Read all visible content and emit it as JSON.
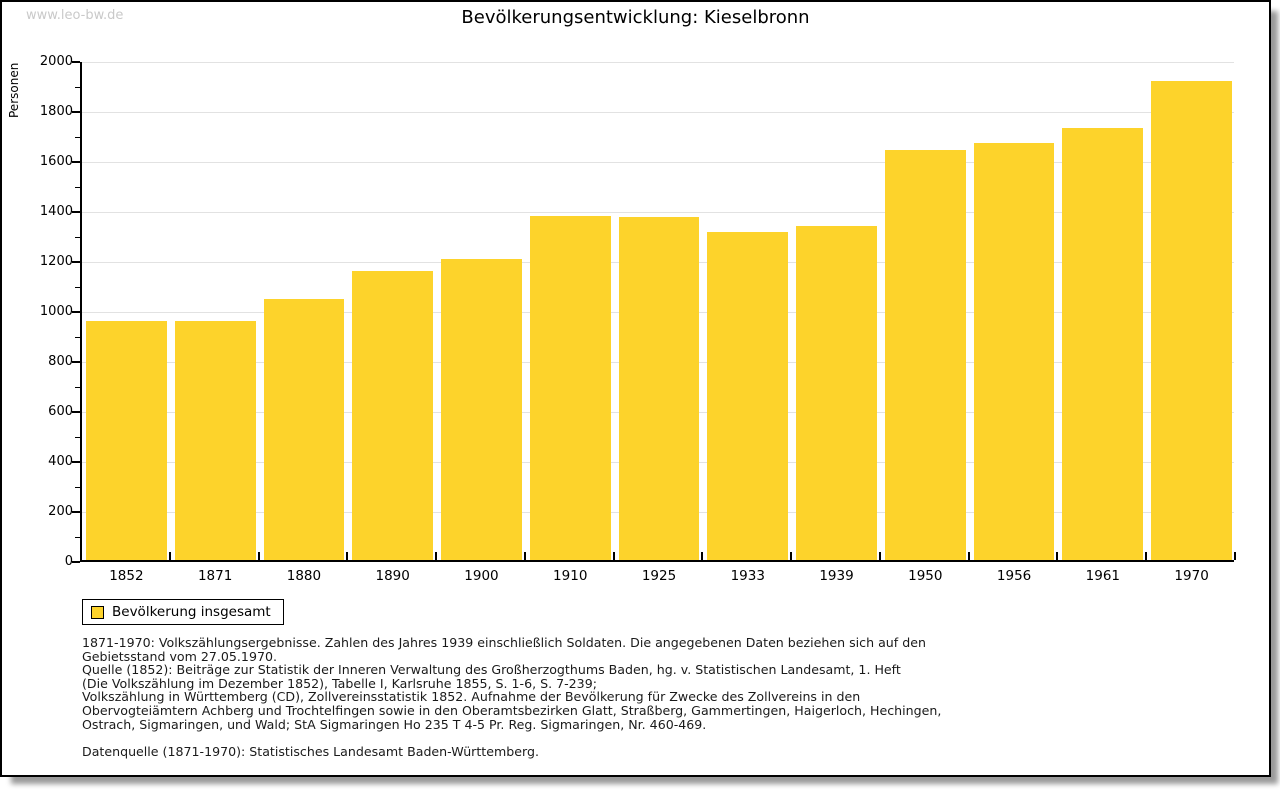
{
  "page": {
    "watermark": "www.leo-bw.de"
  },
  "chart_data": {
    "type": "bar",
    "title": "Bevölkerungsentwicklung: Kieselbronn",
    "xlabel": "",
    "ylabel": "Personen",
    "categories": [
      "1852",
      "1871",
      "1880",
      "1890",
      "1900",
      "1910",
      "1925",
      "1933",
      "1939",
      "1950",
      "1956",
      "1961",
      "1970"
    ],
    "values": [
      956,
      957,
      1043,
      1155,
      1206,
      1377,
      1371,
      1312,
      1335,
      1641,
      1668,
      1730,
      1918
    ],
    "ylim": [
      0,
      2000
    ],
    "ytick_step": 200,
    "yminor_step": 100,
    "grid": true,
    "legend_position": "bottom-left",
    "bar_color": "#fdd32b",
    "legend": {
      "label": "Bevölkerung insgesamt"
    }
  },
  "colors": {
    "bar": "#fdd32b",
    "gridline": "#e2e2e2",
    "axis": "#000000",
    "watermark": "#c9c9c9",
    "shadow": "#9a9a9a"
  },
  "footer": {
    "lines": [
      "1871-1970: Volkszählungsergebnisse. Zahlen des Jahres 1939 einschließlich Soldaten. Die angegebenen Daten beziehen sich auf den",
      "Gebietsstand vom 27.05.1970.",
      "Quelle (1852): Beiträge zur Statistik der Inneren Verwaltung des Großherzogthums Baden, hg. v. Statistischen Landesamt, 1. Heft",
      "(Die Volkszählung im Dezember 1852), Tabelle I, Karlsruhe 1855, S. 1-6, S. 7-239;",
      "Volkszählung in Württemberg (CD), Zollvereinsstatistik 1852. Aufnahme der Bevölkerung für Zwecke des Zollvereins in den",
      "Obervogteiämtern Achberg und Trochtelfingen sowie in den Oberamtsbezirken Glatt, Straßberg, Gammertingen, Haigerloch, Hechingen,",
      "Ostrach, Sigmaringen, und Wald; StA Sigmaringen Ho 235 T 4-5 Pr. Reg. Sigmaringen, Nr. 460-469."
    ],
    "datasource": "Datenquelle (1871-1970): Statistisches Landesamt Baden-Württemberg."
  }
}
